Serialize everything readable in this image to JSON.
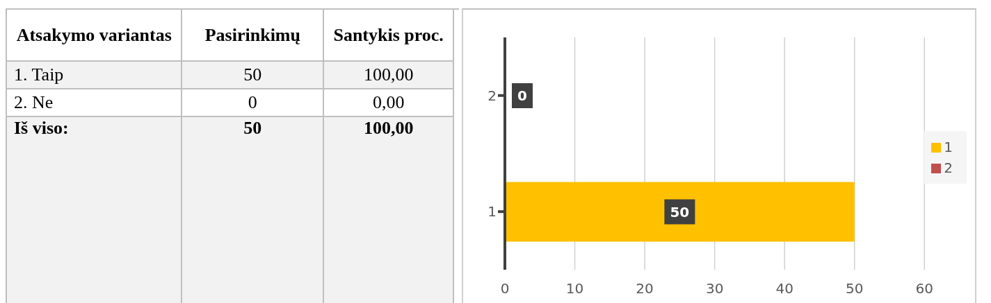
{
  "chart_data": [
    {
      "type": "other",
      "annotations": [
        "Atsakymo variantas",
        "Pasirinkimų",
        "Santykis proc.",
        "1. Taip",
        "50",
        "100,00",
        "2. Ne",
        "0",
        "0,00",
        "Iš viso:",
        "50",
        "100,00"
      ]
    },
    {
      "type": "bar",
      "orientation": "horizontal",
      "stacked": true,
      "categories": [
        "2",
        "1"
      ],
      "series": [
        {
          "name": "1",
          "color": "#ffc000",
          "values": [
            null,
            50
          ]
        },
        {
          "name": "2",
          "color": "#c0504d",
          "values": [
            0,
            null
          ]
        }
      ],
      "xlim": [
        0,
        60
      ],
      "xticks": [
        0,
        10,
        20,
        30,
        40,
        50,
        60
      ],
      "grid": "x",
      "legend": "right",
      "data_labels": true
    }
  ]
}
